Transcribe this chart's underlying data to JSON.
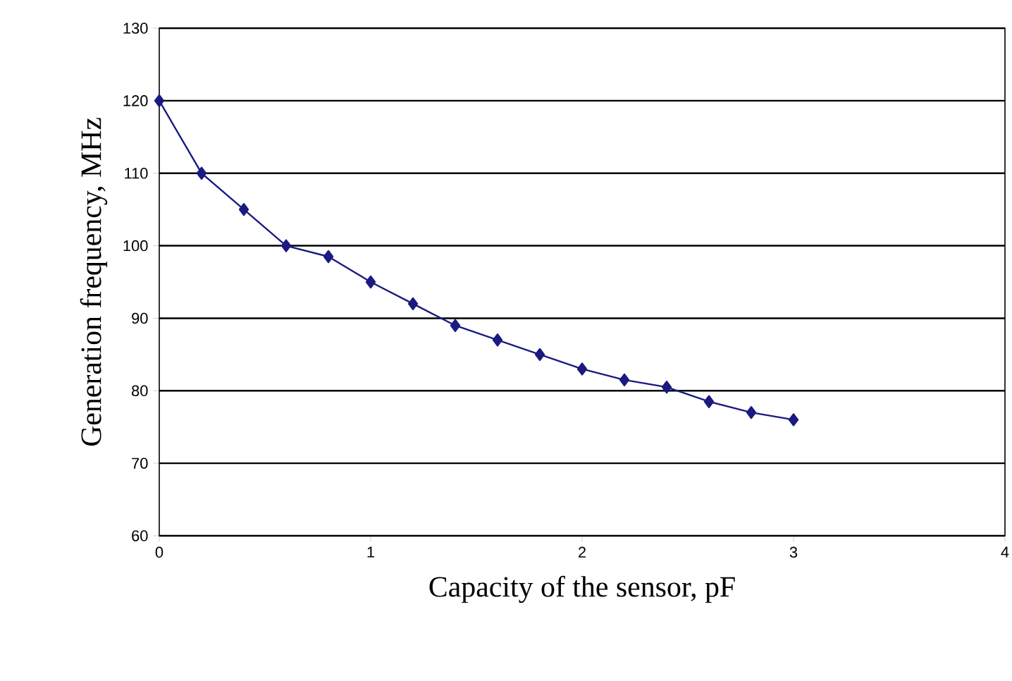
{
  "chart_data": {
    "type": "line",
    "xlabel": "Capacity of the sensor, pF",
    "ylabel": "Generation frequency, MHz",
    "x": [
      0,
      0.2,
      0.4,
      0.6,
      0.8,
      1.0,
      1.2,
      1.4,
      1.6,
      1.8,
      2.0,
      2.2,
      2.4,
      2.6,
      2.8,
      3.0
    ],
    "series": [
      {
        "color": "#1a1a80",
        "values": [
          120,
          110,
          105,
          100,
          98.5,
          95,
          92,
          89,
          87,
          85,
          83,
          81.5,
          80.5,
          78.5,
          77,
          76
        ]
      }
    ],
    "xlim": [
      0,
      4
    ],
    "ylim": [
      60,
      130
    ],
    "xticks": [
      0,
      1,
      2,
      3,
      4
    ],
    "yticks": [
      60,
      70,
      80,
      90,
      100,
      110,
      120,
      130
    ],
    "grid": "y",
    "marker": "diamond",
    "line_style": "solid"
  }
}
